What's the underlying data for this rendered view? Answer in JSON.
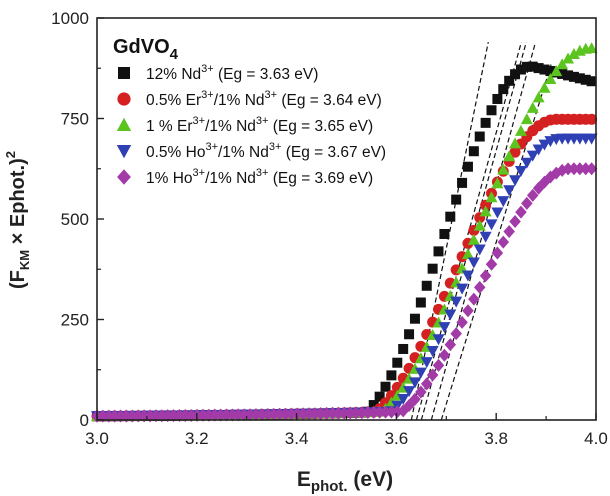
{
  "chart_data": {
    "type": "scatter",
    "title": "GdVO",
    "title_sub": "4",
    "xlabel_main": "E",
    "xlabel_sub": "phot.",
    "xlabel_unit": " (eV)",
    "ylabel_pre": "(F",
    "ylabel_sub": "KM",
    "ylabel_mid": " × Ephot.)",
    "ylabel_sup": "2",
    "xlim": [
      3.0,
      4.0
    ],
    "ylim": [
      0,
      1000
    ],
    "x_ticks": [
      "3.0",
      "3.2",
      "3.4",
      "3.6",
      "3.8",
      "4.0"
    ],
    "y_ticks": [
      "0",
      "250",
      "500",
      "750",
      "1000"
    ],
    "legend_position": "top-left",
    "grid": false,
    "series": [
      {
        "name": "12% Nd3+ (Eg = 3.63 eV)",
        "label_a": "12% Nd",
        "sup1": "3+",
        "label_b": " (Eg = 3.63 eV)",
        "label_c": "",
        "sup2": "",
        "marker": "square",
        "color": "#111111",
        "eg": 3.63,
        "plateau": 880,
        "plateau_x": 3.87,
        "tail": 3.2,
        "tail_rate": 16,
        "end": 840
      },
      {
        "name": "0.5% Er3+/1% Nd3+ (Eg = 3.64 eV)",
        "label_a": "0.5% Er",
        "sup1": "3+",
        "label_b": "/1% Nd",
        "sup2": "3+",
        "label_c": " (Eg = 3.64 eV)",
        "marker": "circle",
        "color": "#d42020",
        "eg": 3.64,
        "plateau": 748,
        "plateau_x": 3.92,
        "tail": 3.6,
        "tail_rate": 15,
        "end": 748
      },
      {
        "name": "1 % Er3+/1% Nd3+ (Eg = 3.65 eV)",
        "label_a": "1 % Er",
        "sup1": "3+",
        "label_b": "/1% Nd",
        "sup2": "3+",
        "label_c": " (Eg = 3.65 eV)",
        "marker": "triangle",
        "color": "#5cc41e",
        "eg": 3.65,
        "plateau": 925,
        "plateau_x": 3.99,
        "tail": 3.8,
        "tail_rate": 15,
        "end": 925
      },
      {
        "name": "0.5% Ho3+/1% Nd3+ (Eg = 3.67 eV)",
        "label_a": "0.5% Ho",
        "sup1": "3+",
        "label_b": "/1% Nd",
        "sup2": "3+",
        "label_c": " (Eg = 3.67 eV)",
        "marker": "triangle-down",
        "color": "#2f3fb4",
        "eg": 3.67,
        "plateau": 700,
        "plateau_x": 3.93,
        "tail": 3.5,
        "tail_rate": 15,
        "end": 700
      },
      {
        "name": "1% Ho3+/1% Nd3+ (Eg = 3.69 eV)",
        "label_a": "1% Ho",
        "sup1": "3+",
        "label_b": "/1% Nd",
        "sup2": "3+",
        "label_c": " (Eg = 3.69 eV)",
        "marker": "diamond",
        "color": "#a23aa8",
        "eg": 3.69,
        "plateau": 625,
        "plateau_x": 3.95,
        "tail": 3.4,
        "tail_rate": 15,
        "end": 625
      }
    ]
  }
}
